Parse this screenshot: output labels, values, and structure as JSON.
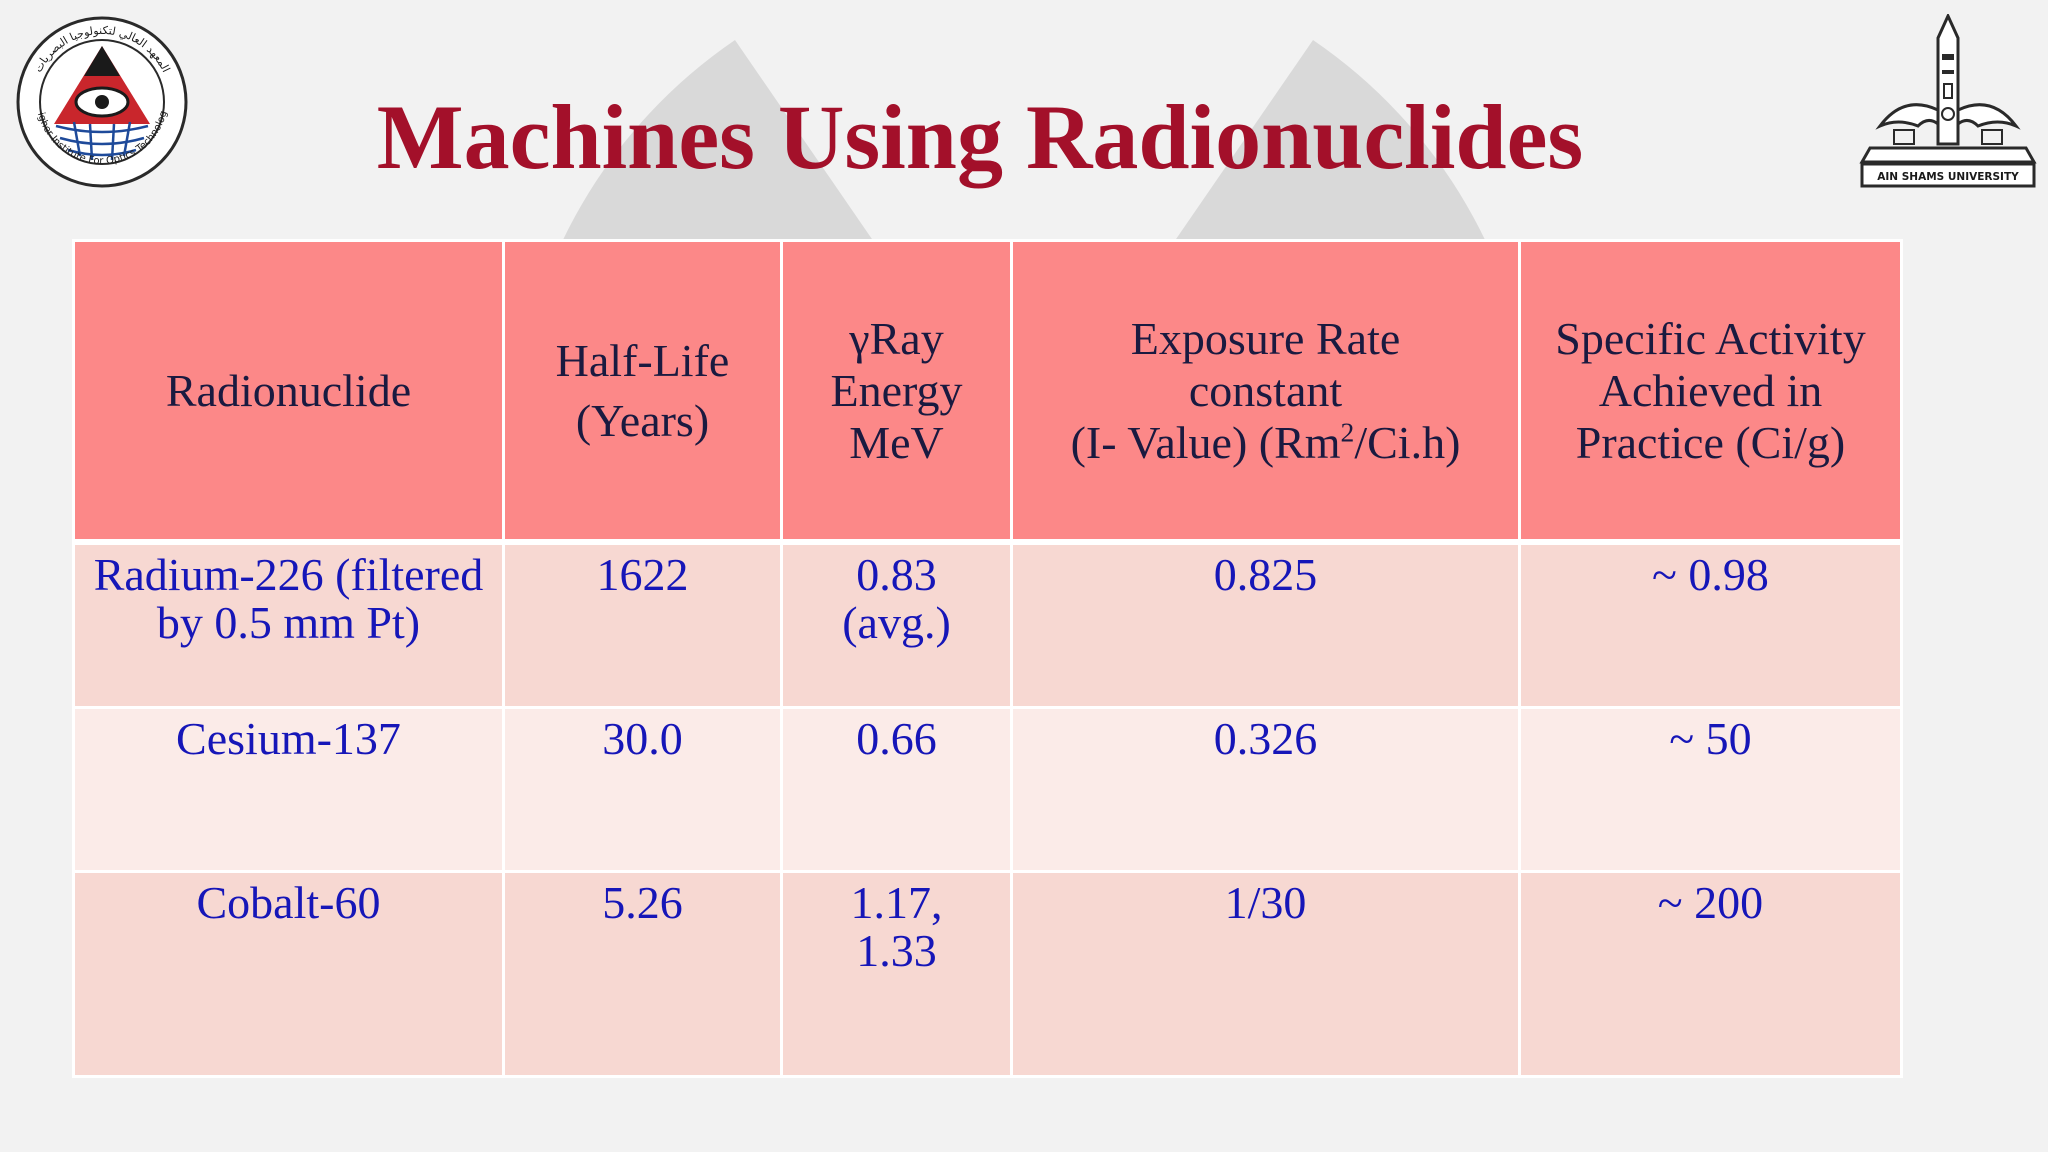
{
  "slide": {
    "title": "Machines Using Radionuclides",
    "logos": {
      "left": "Higher Institute For Optics Technology",
      "left_arabic": "المعهد العالي لتكنولوجيا البصريات",
      "right": "AIN SHAMS UNIVERSITY"
    }
  },
  "table": {
    "headers": {
      "radionuclide": "Radionuclide",
      "half_life_1": "Half-Life",
      "half_life_2": "(Years)",
      "gamma_1": "γRay",
      "gamma_2": "Energy",
      "gamma_3": "MeV",
      "exposure_1": "Exposure Rate",
      "exposure_2": "constant",
      "exposure_3a": "(I- Value) (Rm",
      "exposure_3sup": "2",
      "exposure_3b": "/Ci.h)",
      "activity_1": "Specific Activity",
      "activity_2": "Achieved in",
      "activity_3": "Practice (Ci/g)"
    },
    "rows": [
      {
        "radionuclide": "Radium-226 (filtered by 0.5 mm Pt)",
        "half_life": "1622",
        "gamma_energy_1": "0.83",
        "gamma_energy_2": "(avg.)",
        "exposure_rate": "0.825",
        "specific_activity": "~ 0.98"
      },
      {
        "radionuclide": "Cesium-137",
        "half_life": "30.0",
        "gamma_energy_1": "0.66",
        "gamma_energy_2": "",
        "exposure_rate": "0.326",
        "specific_activity": "~ 50"
      },
      {
        "radionuclide": "Cobalt-60",
        "half_life": "5.26",
        "gamma_energy_1": "1.17,",
        "gamma_energy_2": "1.33",
        "exposure_rate": "1/30",
        "specific_activity": "~ 200"
      }
    ]
  },
  "colors": {
    "title": "#a3102a",
    "header_bg": "#fc8888",
    "row_dark": "#f7d8d2",
    "row_light": "#fbebe8",
    "cell_text": "#1616b8"
  },
  "icons": {
    "watermark": "radiation-trefoil-icon"
  }
}
